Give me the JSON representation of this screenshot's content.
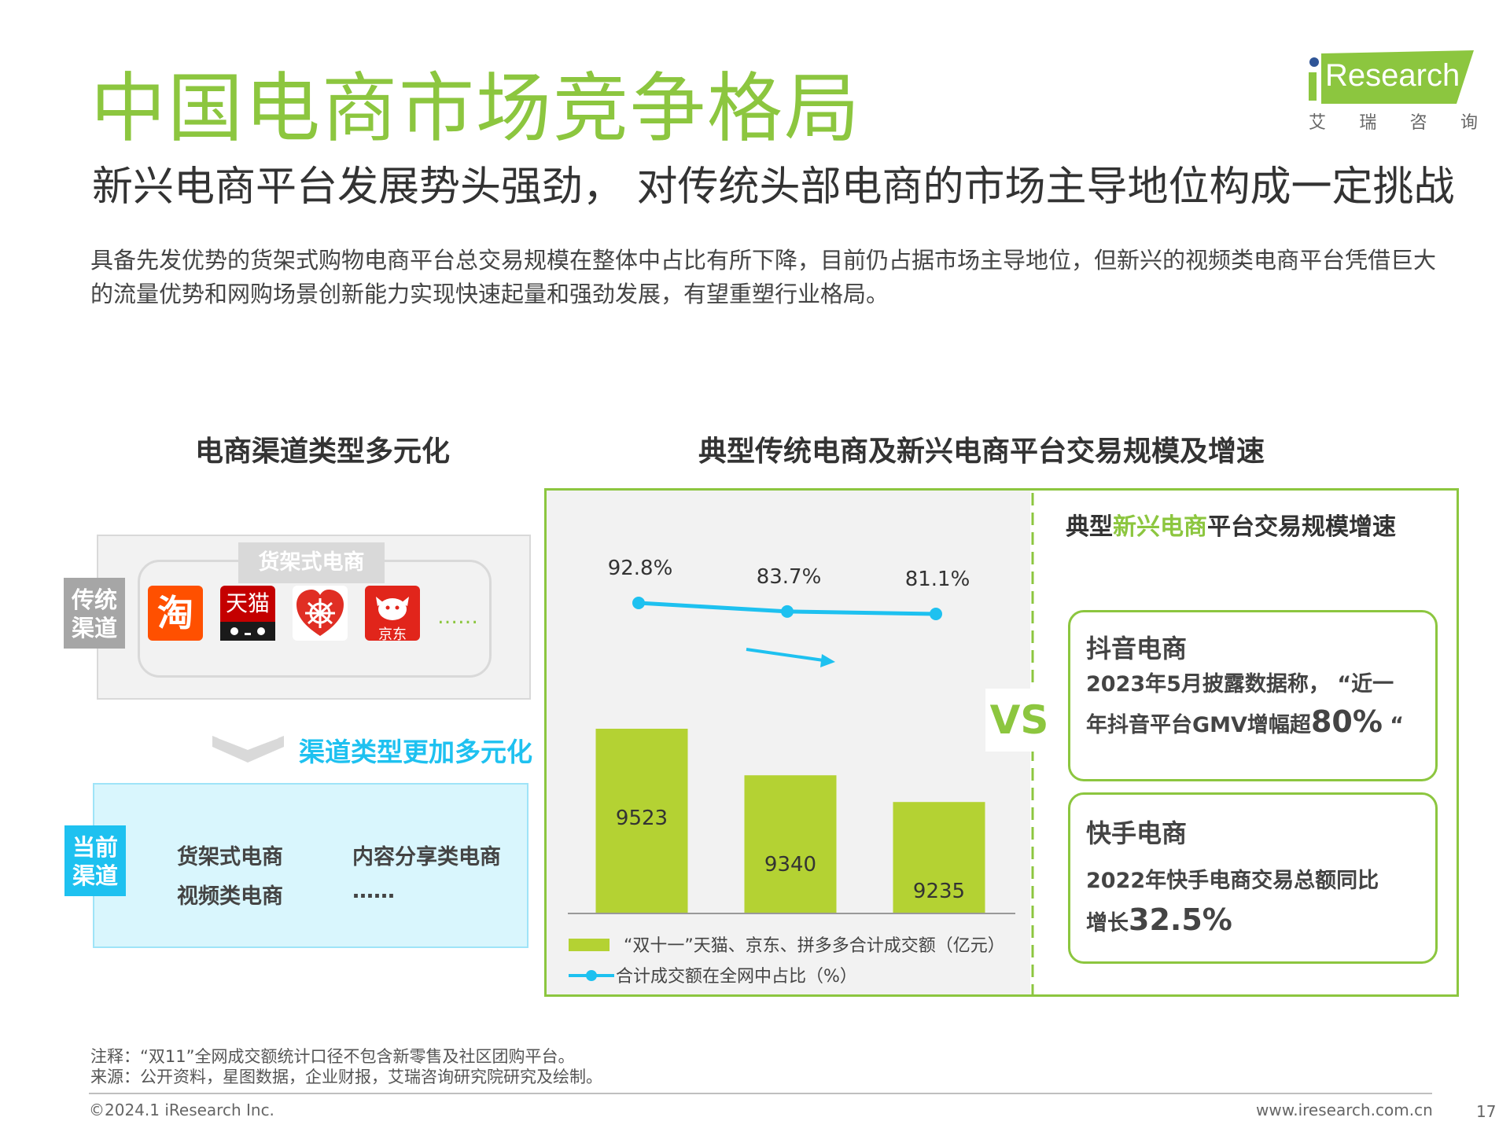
{
  "header": {
    "title": "中国电商市场竞争格局",
    "subtitle": "新兴电商平台发展势头强劲， 对传统头部电商的市场主导地位构成一定挑战",
    "intro": "具备先发优势的货架式购物电商平台总交易规模在整体中占比有所下降，目前仍占据市场主导地位，但新兴的视频类电商平台凭借巨大的流量优势和网购场景创新能力实现快速起量和强劲发展，有望重塑行业格局。"
  },
  "logo": {
    "text": "Research",
    "cn": [
      "艾",
      "瑞",
      "咨",
      "询"
    ],
    "accent": "#8cc63f"
  },
  "left": {
    "title": "电商渠道类型多元化",
    "traditional_tag": "传统渠道",
    "shelf_label": "货架式电商",
    "apps": {
      "taobao": "淘",
      "tmall": "天猫",
      "jd": "京东"
    },
    "more": "……",
    "diverse_label": "渠道类型更加多元化",
    "current_tag": "当前渠道",
    "current_items": [
      "货架式电商",
      "内容分享类电商",
      "视频类电商",
      "……"
    ]
  },
  "right": {
    "title": "典型传统电商及新兴电商平台交易规模及增速",
    "sub_prefix": "典型",
    "sub_highlight": "新兴电商",
    "sub_suffix": "平台交易规模增速",
    "vs": "VS",
    "douyin": {
      "title": "抖音电商",
      "line1": "2023年5月披露数据称， “近一",
      "line2_prefix": "年抖音平台GMV增幅超",
      "line2_num": "80%",
      "line2_suffix": " “"
    },
    "kuaishou": {
      "title": "快手电商",
      "line1": "2022年快手电商交易总额同比",
      "line2_prefix": "增长",
      "line2_num": "32.5%"
    }
  },
  "chart_data": {
    "type": "bar",
    "categories": [
      "",
      "",
      ""
    ],
    "series": [
      {
        "name": "“双十一”天猫、京东、拼多多合计成交额（亿元）",
        "type": "bar",
        "values": [
          9523,
          9340,
          9235
        ],
        "color": "#b4d233"
      },
      {
        "name": "合计成交额在全网中占比（%）",
        "type": "line",
        "values": [
          92.8,
          83.7,
          81.1
        ],
        "labels": [
          "92.8%",
          "83.7%",
          "81.1%"
        ],
        "color": "#1ec1f0"
      }
    ],
    "title": "",
    "xlabel": "",
    "ylabel": "",
    "bar_ylim": [
      0,
      9523
    ],
    "line_ylim": [
      0,
      100
    ],
    "legend": "bottom"
  },
  "footer": {
    "note": "注释：“双11”全网成交额统计口径不包含新零售及社区团购平台。",
    "source": "来源：公开资料，星图数据，企业财报，艾瑞咨询研究院研究及绘制。",
    "copyright": "©2024.1 iResearch Inc.",
    "website": "www.iresearch.com.cn",
    "page": "17"
  }
}
